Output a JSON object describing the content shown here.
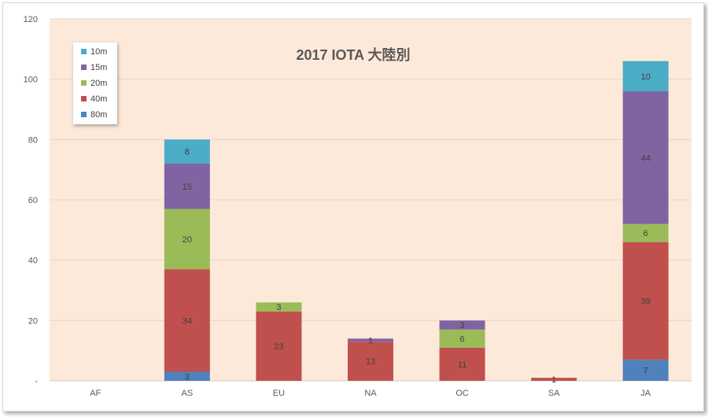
{
  "chart_data": {
    "type": "bar",
    "stacked": true,
    "title": "2017 IOTA 大陸別",
    "categories": [
      "AF",
      "AS",
      "EU",
      "NA",
      "OC",
      "SA",
      "JA"
    ],
    "ylim": [
      0,
      120
    ],
    "yticks": [
      0,
      20,
      40,
      60,
      80,
      100,
      120
    ],
    "ytick_labels": [
      "-",
      "20",
      "40",
      "60",
      "80",
      "100",
      "120"
    ],
    "grid": true,
    "legend_position": "top-left",
    "series": [
      {
        "name": "80m",
        "color": "#4f81bd",
        "values": [
          0,
          3,
          0,
          0,
          0,
          0,
          7
        ]
      },
      {
        "name": "40m",
        "color": "#c0504d",
        "values": [
          0,
          34,
          23,
          13,
          11,
          1,
          39
        ]
      },
      {
        "name": "20m",
        "color": "#9bbb59",
        "values": [
          0,
          20,
          3,
          0,
          6,
          0,
          6
        ]
      },
      {
        "name": "15m",
        "color": "#8064a2",
        "values": [
          0,
          15,
          0,
          1,
          3,
          0,
          44
        ]
      },
      {
        "name": "10m",
        "color": "#4bacc6",
        "values": [
          0,
          8,
          0,
          0,
          0,
          0,
          10
        ]
      }
    ],
    "plot_background": "#fde9d9",
    "gridline_color": "#e6d6cc"
  }
}
